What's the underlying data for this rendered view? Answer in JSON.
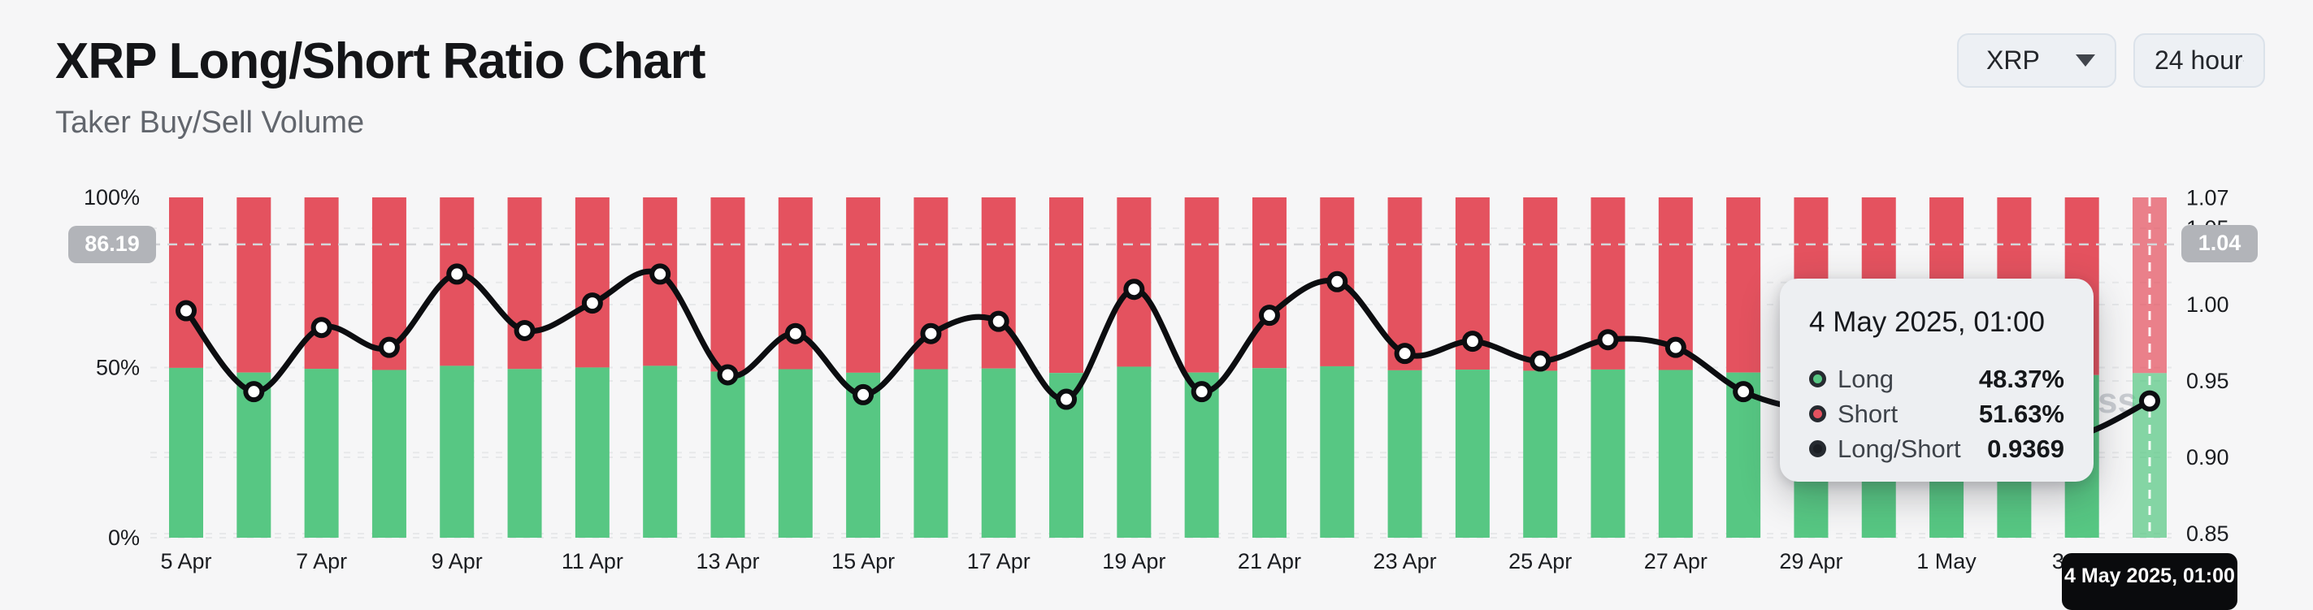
{
  "header": {
    "title": "XRP Long/Short Ratio Chart",
    "subtitle": "Taker Buy/Sell Volume"
  },
  "controls": {
    "symbol": "XRP",
    "interval": "24 hour"
  },
  "watermark": {
    "text": "coinglass"
  },
  "chart_data": {
    "type": "bar",
    "subtype": "stacked-percent-bars-with-ratio-line",
    "title": "XRP Long/Short Ratio Chart",
    "categories": [
      "5 Apr",
      "6 Apr",
      "7 Apr",
      "8 Apr",
      "9 Apr",
      "10 Apr",
      "11 Apr",
      "12 Apr",
      "13 Apr",
      "14 Apr",
      "15 Apr",
      "16 Apr",
      "17 Apr",
      "18 Apr",
      "19 Apr",
      "20 Apr",
      "21 Apr",
      "22 Apr",
      "23 Apr",
      "24 Apr",
      "25 Apr",
      "26 Apr",
      "27 Apr",
      "28 Apr",
      "29 Apr",
      "30 Apr",
      "1 May",
      "2 May",
      "3 May",
      "4 May"
    ],
    "series": [
      {
        "name": "Long",
        "type": "bar",
        "stack": "total",
        "unit": "%",
        "color": "#57c783",
        "values": [
          49.9,
          48.53,
          49.62,
          49.29,
          50.5,
          49.57,
          50.02,
          50.5,
          48.82,
          49.52,
          48.48,
          49.52,
          49.72,
          48.4,
          50.25,
          48.53,
          49.82,
          50.37,
          49.19,
          49.39,
          49.06,
          49.42,
          49.29,
          48.53,
          48.19,
          47.97,
          47.81,
          47.7,
          47.78,
          48.37
        ]
      },
      {
        "name": "Short",
        "type": "bar",
        "stack": "total",
        "unit": "%",
        "color": "#e4525f",
        "values": [
          50.1,
          51.47,
          50.38,
          50.71,
          49.5,
          50.43,
          49.98,
          49.5,
          51.18,
          50.48,
          51.52,
          50.48,
          50.28,
          51.6,
          49.75,
          51.47,
          50.18,
          49.63,
          50.81,
          50.61,
          50.94,
          50.58,
          50.71,
          51.47,
          51.81,
          52.03,
          52.19,
          52.3,
          52.22,
          51.63
        ]
      },
      {
        "name": "Long/Short",
        "type": "line",
        "y_axis": "right",
        "color": "#0c0d10",
        "values": [
          0.996,
          0.943,
          0.985,
          0.972,
          1.02,
          0.983,
          1.001,
          1.02,
          0.954,
          0.981,
          0.941,
          0.981,
          0.989,
          0.938,
          1.01,
          0.943,
          0.993,
          1.015,
          0.968,
          0.976,
          0.963,
          0.977,
          0.972,
          0.943,
          0.93,
          0.922,
          0.916,
          0.912,
          0.915,
          0.9369
        ]
      }
    ],
    "left_axis": {
      "min": 0,
      "max": 100,
      "ticks": [
        {
          "value": 100,
          "label": "100%"
        },
        {
          "value": 50,
          "label": "50%"
        },
        {
          "value": 0,
          "label": "0%"
        }
      ]
    },
    "right_axis": {
      "min": 0.85,
      "max": 1.07,
      "ticks": [
        {
          "value": 1.07,
          "label": "1.07"
        },
        {
          "value": 1.05,
          "label": "1.05"
        },
        {
          "value": 1.0,
          "label": "1.00"
        },
        {
          "value": 0.95,
          "label": "0.95"
        },
        {
          "value": 0.9,
          "label": "0.90"
        },
        {
          "value": 0.85,
          "label": "0.85"
        }
      ]
    },
    "x_tick_labels": [
      {
        "index": 0,
        "label": "5 Apr"
      },
      {
        "index": 2,
        "label": "7 Apr"
      },
      {
        "index": 4,
        "label": "9 Apr"
      },
      {
        "index": 6,
        "label": "11 Apr"
      },
      {
        "index": 8,
        "label": "13 Apr"
      },
      {
        "index": 10,
        "label": "15 Apr"
      },
      {
        "index": 12,
        "label": "17 Apr"
      },
      {
        "index": 14,
        "label": "19 Apr"
      },
      {
        "index": 16,
        "label": "21 Apr"
      },
      {
        "index": 18,
        "label": "23 Apr"
      },
      {
        "index": 20,
        "label": "25 Apr"
      },
      {
        "index": 22,
        "label": "27 Apr"
      },
      {
        "index": 24,
        "label": "29 Apr"
      },
      {
        "index": 26,
        "label": "1 May"
      },
      {
        "index": 28,
        "label": "3 May"
      }
    ],
    "grid": "dashed",
    "legend_position": "none"
  },
  "crosshair": {
    "left_label": "86.19",
    "left_value": 86.19,
    "right_label": "1.04",
    "right_value": 1.04,
    "x_index": 29,
    "x_label": "4 May 2025, 01:00"
  },
  "tooltip": {
    "title": "4 May 2025, 01:00",
    "rows": [
      {
        "label": "Long",
        "value": "48.37%",
        "color": "#57c783"
      },
      {
        "label": "Short",
        "value": "51.63%",
        "color": "#e4525f"
      },
      {
        "label": "Long/Short",
        "value": "0.9369",
        "color": "#1b1e23"
      }
    ]
  }
}
